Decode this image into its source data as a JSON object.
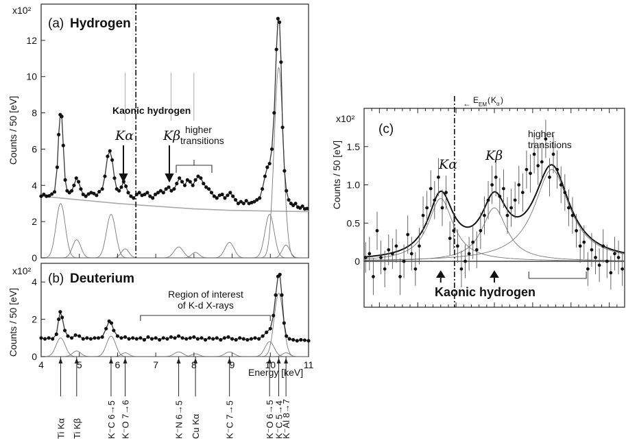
{
  "chart_data": [
    {
      "type": "line",
      "panel_label": "(a)",
      "title": "Hydrogen",
      "xlabel": "Energy [keV]",
      "ylabel": "Counts / 50 [eV]",
      "y_multiplier": "x10²",
      "xlim": [
        4,
        11
      ],
      "ylim": [
        0,
        1400
      ],
      "x_ticks": [
        4,
        5,
        6,
        7,
        8,
        9,
        10,
        11
      ],
      "y_ticks": [
        0,
        200,
        400,
        600,
        800,
        1000,
        1200
      ],
      "y_tick_labels": [
        "0",
        "2",
        "4",
        "6",
        "8",
        "10",
        "12"
      ],
      "dashdot_x": 6.48,
      "annotations": {
        "group": "Kaonic hydrogen",
        "ka": "Kα",
        "kb": "Kβ",
        "higher": [
          "higher",
          "transitions"
        ]
      },
      "background_line": [
        [
          4.0,
          340
        ],
        [
          5.0,
          320
        ],
        [
          6.0,
          300
        ],
        [
          7.0,
          285
        ],
        [
          8.0,
          270
        ],
        [
          9.0,
          262
        ],
        [
          10.0,
          258
        ],
        [
          11.0,
          255
        ]
      ],
      "peaks": [
        {
          "x": 4.51,
          "height": 300,
          "width": 0.12
        },
        {
          "x": 4.93,
          "height": 100,
          "width": 0.11
        },
        {
          "x": 5.83,
          "height": 240,
          "width": 0.12
        },
        {
          "x": 6.2,
          "height": 50,
          "width": 0.1
        },
        {
          "x": 7.6,
          "height": 60,
          "width": 0.12
        },
        {
          "x": 8.04,
          "height": 30,
          "width": 0.1
        },
        {
          "x": 8.93,
          "height": 85,
          "width": 0.12
        },
        {
          "x": 9.98,
          "height": 240,
          "width": 0.12
        },
        {
          "x": 10.22,
          "height": 1050,
          "width": 0.12
        },
        {
          "x": 10.41,
          "height": 70,
          "width": 0.1
        }
      ],
      "points": [
        [
          4.0,
          340
        ],
        [
          4.07,
          350
        ],
        [
          4.14,
          340
        ],
        [
          4.21,
          342
        ],
        [
          4.28,
          352
        ],
        [
          4.35,
          364
        ],
        [
          4.42,
          500
        ],
        [
          4.46,
          680
        ],
        [
          4.5,
          790
        ],
        [
          4.54,
          780
        ],
        [
          4.58,
          620
        ],
        [
          4.63,
          430
        ],
        [
          4.68,
          370
        ],
        [
          4.74,
          360
        ],
        [
          4.8,
          370
        ],
        [
          4.86,
          400
        ],
        [
          4.92,
          440
        ],
        [
          4.98,
          420
        ],
        [
          5.04,
          380
        ],
        [
          5.1,
          350
        ],
        [
          5.17,
          340
        ],
        [
          5.24,
          352
        ],
        [
          5.31,
          360
        ],
        [
          5.38,
          355
        ],
        [
          5.45,
          345
        ],
        [
          5.52,
          365
        ],
        [
          5.6,
          380
        ],
        [
          5.67,
          450
        ],
        [
          5.74,
          560
        ],
        [
          5.8,
          590
        ],
        [
          5.86,
          540
        ],
        [
          5.92,
          440
        ],
        [
          5.98,
          380
        ],
        [
          6.04,
          370
        ],
        [
          6.1,
          390
        ],
        [
          6.16,
          420
        ],
        [
          6.22,
          395
        ],
        [
          6.28,
          360
        ],
        [
          6.35,
          340
        ],
        [
          6.42,
          330
        ],
        [
          6.5,
          350
        ],
        [
          6.57,
          360
        ],
        [
          6.64,
          345
        ],
        [
          6.71,
          350
        ],
        [
          6.78,
          360
        ],
        [
          6.85,
          340
        ],
        [
          6.92,
          330
        ],
        [
          6.99,
          350
        ],
        [
          7.06,
          360
        ],
        [
          7.13,
          370
        ],
        [
          7.2,
          360
        ],
        [
          7.27,
          380
        ],
        [
          7.34,
          390
        ],
        [
          7.41,
          370
        ],
        [
          7.48,
          380
        ],
        [
          7.55,
          410
        ],
        [
          7.62,
          440
        ],
        [
          7.69,
          420
        ],
        [
          7.76,
          400
        ],
        [
          7.83,
          430
        ],
        [
          7.9,
          420
        ],
        [
          7.97,
          400
        ],
        [
          8.04,
          430
        ],
        [
          8.11,
          450
        ],
        [
          8.18,
          440
        ],
        [
          8.25,
          410
        ],
        [
          8.32,
          390
        ],
        [
          8.39,
          380
        ],
        [
          8.46,
          360
        ],
        [
          8.53,
          340
        ],
        [
          8.6,
          330
        ],
        [
          8.67,
          345
        ],
        [
          8.74,
          350
        ],
        [
          8.81,
          330
        ],
        [
          8.88,
          345
        ],
        [
          8.95,
          360
        ],
        [
          9.02,
          340
        ],
        [
          9.09,
          320
        ],
        [
          9.16,
          300
        ],
        [
          9.23,
          310
        ],
        [
          9.3,
          300
        ],
        [
          9.37,
          315
        ],
        [
          9.44,
          300
        ],
        [
          9.51,
          305
        ],
        [
          9.58,
          310
        ],
        [
          9.65,
          320
        ],
        [
          9.72,
          330
        ],
        [
          9.79,
          380
        ],
        [
          9.86,
          450
        ],
        [
          9.92,
          500
        ],
        [
          9.98,
          520
        ],
        [
          10.04,
          600
        ],
        [
          10.1,
          800
        ],
        [
          10.16,
          1150
        ],
        [
          10.2,
          1320
        ],
        [
          10.24,
          1300
        ],
        [
          10.28,
          1080
        ],
        [
          10.32,
          720
        ],
        [
          10.37,
          480
        ],
        [
          10.42,
          370
        ],
        [
          10.48,
          320
        ],
        [
          10.54,
          300
        ],
        [
          10.6,
          290
        ],
        [
          10.66,
          300
        ],
        [
          10.72,
          280
        ],
        [
          10.78,
          275
        ],
        [
          10.84,
          285
        ],
        [
          10.9,
          270
        ],
        [
          10.96,
          272
        ]
      ]
    },
    {
      "type": "line",
      "panel_label": "(b)",
      "title": "Deuterium",
      "xlabel": "Energy [keV]",
      "ylabel": "Counts / 50 [eV]",
      "y_multiplier": "x10²",
      "xlim": [
        4,
        11
      ],
      "ylim": [
        0,
        500
      ],
      "x_ticks": [
        4,
        5,
        6,
        7,
        8,
        9,
        10,
        11
      ],
      "y_ticks": [
        0,
        200,
        400
      ],
      "y_tick_labels": [
        "0",
        "2",
        "4"
      ],
      "region_label": [
        "Region of interest",
        "of K-d X-rays"
      ],
      "region_range": [
        6.6,
        10.0
      ],
      "background_level": 90,
      "peaks": [
        {
          "x": 4.51,
          "height": 100,
          "width": 0.12
        },
        {
          "x": 4.93,
          "height": 30,
          "width": 0.11
        },
        {
          "x": 5.83,
          "height": 110,
          "width": 0.12
        },
        {
          "x": 6.2,
          "height": 20,
          "width": 0.1
        },
        {
          "x": 7.6,
          "height": 25,
          "width": 0.12
        },
        {
          "x": 8.04,
          "height": 15,
          "width": 0.1
        },
        {
          "x": 8.93,
          "height": 25,
          "width": 0.12
        },
        {
          "x": 9.98,
          "height": 80,
          "width": 0.12
        },
        {
          "x": 10.22,
          "height": 340,
          "width": 0.12
        },
        {
          "x": 10.41,
          "height": 20,
          "width": 0.1
        }
      ],
      "points": [
        [
          4.0,
          100
        ],
        [
          4.1,
          95
        ],
        [
          4.2,
          100
        ],
        [
          4.3,
          95
        ],
        [
          4.4,
          120
        ],
        [
          4.46,
          200
        ],
        [
          4.5,
          240
        ],
        [
          4.55,
          210
        ],
        [
          4.62,
          140
        ],
        [
          4.7,
          110
        ],
        [
          4.8,
          100
        ],
        [
          4.9,
          115
        ],
        [
          5.0,
          110
        ],
        [
          5.1,
          95
        ],
        [
          5.2,
          100
        ],
        [
          5.3,
          95
        ],
        [
          5.4,
          100
        ],
        [
          5.5,
          100
        ],
        [
          5.6,
          105
        ],
        [
          5.7,
          150
        ],
        [
          5.78,
          190
        ],
        [
          5.84,
          180
        ],
        [
          5.9,
          140
        ],
        [
          6.0,
          110
        ],
        [
          6.1,
          100
        ],
        [
          6.2,
          105
        ],
        [
          6.3,
          95
        ],
        [
          6.4,
          100
        ],
        [
          6.5,
          95
        ],
        [
          6.6,
          100
        ],
        [
          6.7,
          90
        ],
        [
          6.8,
          105
        ],
        [
          6.9,
          95
        ],
        [
          7.0,
          100
        ],
        [
          7.1,
          90
        ],
        [
          7.2,
          100
        ],
        [
          7.3,
          95
        ],
        [
          7.4,
          105
        ],
        [
          7.5,
          100
        ],
        [
          7.6,
          110
        ],
        [
          7.7,
          100
        ],
        [
          7.8,
          95
        ],
        [
          7.9,
          100
        ],
        [
          8.0,
          105
        ],
        [
          8.1,
          95
        ],
        [
          8.2,
          100
        ],
        [
          8.3,
          90
        ],
        [
          8.4,
          100
        ],
        [
          8.5,
          95
        ],
        [
          8.6,
          100
        ],
        [
          8.7,
          90
        ],
        [
          8.8,
          100
        ],
        [
          8.9,
          105
        ],
        [
          9.0,
          95
        ],
        [
          9.1,
          90
        ],
        [
          9.2,
          100
        ],
        [
          9.3,
          95
        ],
        [
          9.4,
          90
        ],
        [
          9.5,
          95
        ],
        [
          9.6,
          100
        ],
        [
          9.7,
          95
        ],
        [
          9.8,
          110
        ],
        [
          9.9,
          130
        ],
        [
          10.0,
          150
        ],
        [
          10.08,
          220
        ],
        [
          10.14,
          330
        ],
        [
          10.2,
          430
        ],
        [
          10.25,
          440
        ],
        [
          10.3,
          330
        ],
        [
          10.36,
          180
        ],
        [
          10.42,
          110
        ],
        [
          10.5,
          95
        ],
        [
          10.6,
          90
        ],
        [
          10.7,
          85
        ],
        [
          10.8,
          90
        ],
        [
          10.9,
          88
        ],
        [
          11.0,
          85
        ]
      ]
    },
    {
      "type": "scatter",
      "panel_label": "(c)",
      "ylabel": "Counts / 50 [eV]",
      "y_multiplier": "x10²",
      "xlim": [
        5.3,
        8.7
      ],
      "ylim": [
        -60,
        200
      ],
      "y_ticks": [
        0,
        50,
        100,
        150
      ],
      "y_tick_labels": [
        "0",
        "0.5",
        "1.0",
        "1.5"
      ],
      "dashdot_x": 6.48,
      "em_label": "E",
      "em_sub": "EM",
      "em_arg": "K",
      "em_arg_sub": "α",
      "annotations": {
        "ka": "Kα",
        "kb": "Kβ",
        "higher": [
          "higher",
          "transitions"
        ],
        "group": "Kaonic hydrogen"
      },
      "arrows_x": [
        6.3,
        7.0
      ],
      "bracket_range": [
        7.45,
        8.2
      ],
      "components": [
        {
          "x": 6.3,
          "height": 82,
          "width": 0.2
        },
        {
          "x": 7.0,
          "height": 70,
          "width": 0.2
        },
        {
          "x": 7.75,
          "height": 120,
          "width": 0.28
        }
      ],
      "points": [
        [
          5.32,
          5,
          20
        ],
        [
          5.37,
          10,
          22
        ],
        [
          5.42,
          -20,
          24
        ],
        [
          5.47,
          40,
          25
        ],
        [
          5.52,
          5,
          22
        ],
        [
          5.57,
          -10,
          24
        ],
        [
          5.62,
          15,
          20
        ],
        [
          5.67,
          10,
          20
        ],
        [
          5.72,
          20,
          22
        ],
        [
          5.77,
          -20,
          24
        ],
        [
          5.82,
          0,
          22
        ],
        [
          5.87,
          35,
          25
        ],
        [
          5.92,
          10,
          22
        ],
        [
          5.97,
          -10,
          22
        ],
        [
          6.02,
          20,
          24
        ],
        [
          6.07,
          60,
          25
        ],
        [
          6.12,
          70,
          22
        ],
        [
          6.17,
          95,
          24
        ],
        [
          6.22,
          80,
          25
        ],
        [
          6.27,
          110,
          25
        ],
        [
          6.32,
          70,
          24
        ],
        [
          6.37,
          90,
          22
        ],
        [
          6.42,
          30,
          22
        ],
        [
          6.47,
          40,
          24
        ],
        [
          6.52,
          20,
          22
        ],
        [
          6.57,
          -10,
          24
        ],
        [
          6.62,
          0,
          22
        ],
        [
          6.67,
          10,
          22
        ],
        [
          6.72,
          25,
          22
        ],
        [
          6.77,
          15,
          24
        ],
        [
          6.82,
          40,
          24
        ],
        [
          6.87,
          60,
          25
        ],
        [
          6.92,
          80,
          25
        ],
        [
          6.97,
          100,
          25
        ],
        [
          7.02,
          110,
          25
        ],
        [
          7.07,
          85,
          24
        ],
        [
          7.12,
          95,
          25
        ],
        [
          7.17,
          60,
          24
        ],
        [
          7.22,
          70,
          25
        ],
        [
          7.27,
          80,
          24
        ],
        [
          7.32,
          100,
          25
        ],
        [
          7.37,
          90,
          25
        ],
        [
          7.42,
          120,
          25
        ],
        [
          7.47,
          115,
          25
        ],
        [
          7.52,
          140,
          25
        ],
        [
          7.57,
          125,
          25
        ],
        [
          7.62,
          130,
          25
        ],
        [
          7.67,
          160,
          25
        ],
        [
          7.72,
          110,
          25
        ],
        [
          7.77,
          140,
          25
        ],
        [
          7.82,
          120,
          25
        ],
        [
          7.87,
          100,
          24
        ],
        [
          7.92,
          90,
          24
        ],
        [
          7.97,
          70,
          24
        ],
        [
          8.02,
          60,
          24
        ],
        [
          8.07,
          40,
          22
        ],
        [
          8.12,
          20,
          22
        ],
        [
          8.17,
          25,
          22
        ],
        [
          8.22,
          -10,
          22
        ],
        [
          8.27,
          15,
          22
        ],
        [
          8.32,
          5,
          22
        ],
        [
          8.37,
          -5,
          22
        ],
        [
          8.42,
          20,
          22
        ],
        [
          8.47,
          0,
          22
        ],
        [
          8.52,
          -15,
          22
        ],
        [
          8.57,
          10,
          22
        ],
        [
          8.62,
          5,
          22
        ],
        [
          8.67,
          -10,
          22
        ]
      ]
    },
    {
      "type": "annotation",
      "line_labels": [
        {
          "x": 4.51,
          "text": "Ti Kα"
        },
        {
          "x": 4.93,
          "text": "Ti Kβ"
        },
        {
          "x": 5.83,
          "text": "K⁻C 6→5"
        },
        {
          "x": 6.2,
          "text": "K⁻O 7→6"
        },
        {
          "x": 7.6,
          "text": "K⁻N 6→5"
        },
        {
          "x": 8.04,
          "text": "Cu Kα"
        },
        {
          "x": 8.93,
          "text": "K⁻C 7→5"
        },
        {
          "x": 9.98,
          "text": "K⁻O 6→5"
        },
        {
          "x": 10.22,
          "text": "K⁻C 5→4"
        },
        {
          "x": 10.41,
          "text": "K⁻Al 8→7"
        }
      ]
    }
  ]
}
